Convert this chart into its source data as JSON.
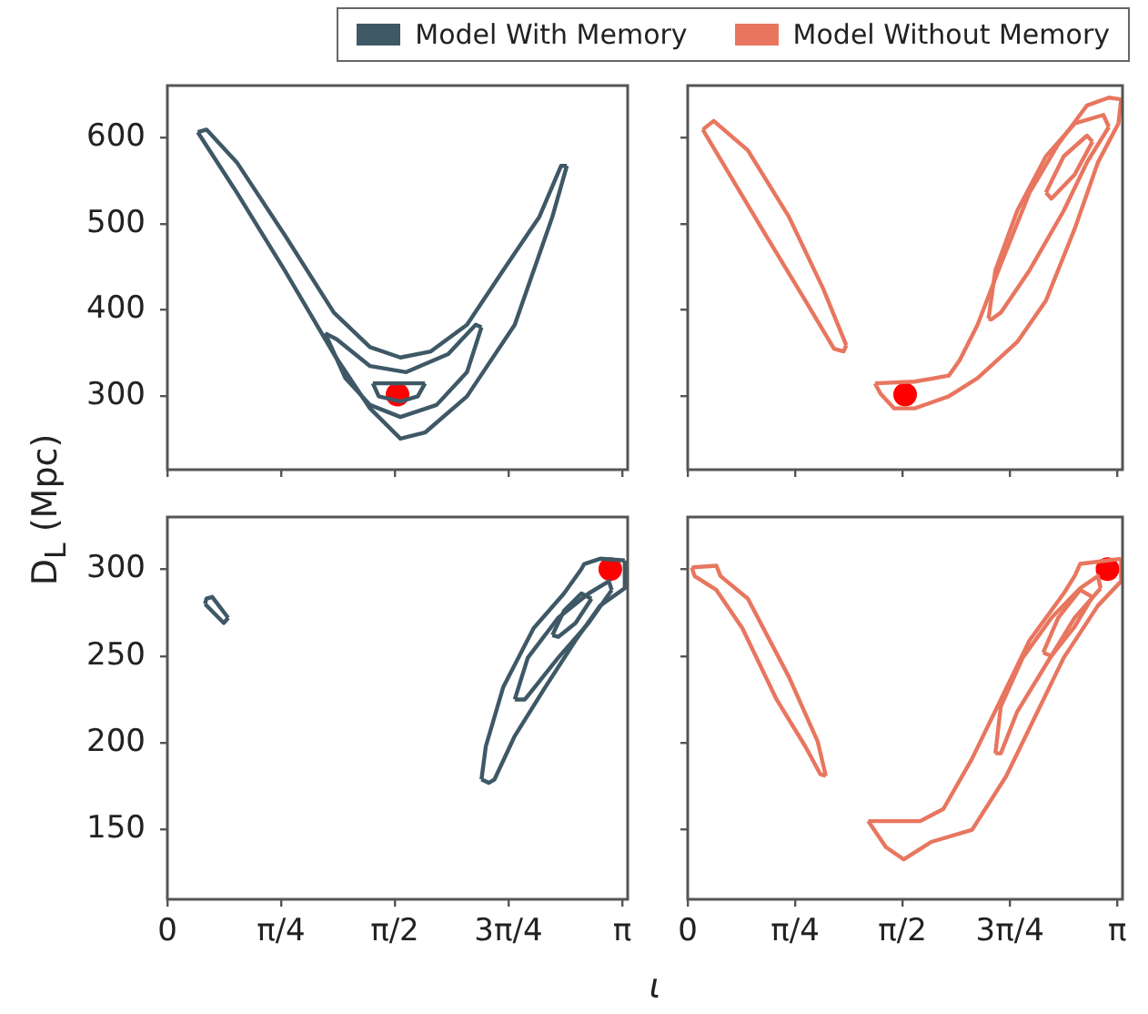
{
  "chart_data": [
    {
      "type": "line",
      "ylabel": "D$_{L}$ (Mpc)",
      "legend": "top",
      "tick_labels": "y",
      "grid": false,
      "marker": "none",
      "xlim": [
        0,
        3.18
      ],
      "ylim": [
        215,
        660
      ],
      "xticks": [
        {
          "value": 0,
          "label": null
        },
        {
          "value": 0.7854,
          "label": null
        },
        {
          "value": 1.5708,
          "label": null
        },
        {
          "value": 2.3562,
          "label": null
        },
        {
          "value": 3.1416,
          "label": null
        }
      ],
      "yticks": [
        300,
        400,
        500,
        600
      ],
      "series": [
        {
          "type": "line",
          "name": "Model With Memory",
          "color": "#3e5866",
          "x": [
            0.21,
            0.48,
            0.81,
            1.15,
            1.4,
            1.61,
            1.78,
            2.07,
            2.4,
            2.66,
            2.76
          ],
          "values": [
            606,
            536,
            446,
            349,
            286,
            251,
            258,
            300,
            383,
            508,
            567
          ]
        },
        {
          "type": "line",
          "color": "#3e5866",
          "x": [
            0.21,
            0.27,
            0.48,
            0.81,
            1.15,
            1.4,
            1.61,
            1.82,
            2.07,
            2.32,
            2.57,
            2.72,
            2.76
          ],
          "values": [
            606,
            609,
            571,
            487,
            397,
            357,
            345,
            352,
            383,
            446,
            508,
            567,
            567
          ]
        },
        {
          "type": "line",
          "color": "#3e5866",
          "x": [
            1.09,
            1.23,
            1.4,
            1.61,
            1.86,
            2.07,
            2.17
          ],
          "values": [
            373,
            321,
            290,
            276,
            290,
            328,
            380
          ]
        },
        {
          "type": "line",
          "color": "#3e5866",
          "x": [
            1.09,
            1.17,
            1.4,
            1.65,
            1.94,
            2.13,
            2.17
          ],
          "values": [
            373,
            366,
            335,
            328,
            349,
            383,
            380
          ]
        },
        {
          "type": "line",
          "color": "#3e5866",
          "x": [
            1.42,
            1.78
          ],
          "values": [
            315,
            315
          ]
        },
        {
          "type": "line",
          "color": "#3e5866",
          "x": [
            1.42,
            1.46,
            1.61,
            1.73,
            1.78
          ],
          "values": [
            315,
            300,
            294,
            300,
            315
          ]
        },
        {
          "type": "scatter",
          "marker": "circle",
          "color": "#ff0000",
          "x": [
            1.59
          ],
          "values": [
            302
          ]
        }
      ]
    },
    {
      "type": "line",
      "legend": "top",
      "tick_labels": false,
      "grid": false,
      "marker": "none",
      "xlim": [
        0,
        3.18
      ],
      "ylim": [
        215,
        660
      ],
      "xticks": [
        {
          "value": 0,
          "label": null
        },
        {
          "value": 0.7854,
          "label": null
        },
        {
          "value": 1.5708,
          "label": null
        },
        {
          "value": 2.3562,
          "label": null
        },
        {
          "value": 3.1416,
          "label": null
        }
      ],
      "yticks": [
        {
          "value": 300,
          "label": null
        },
        {
          "value": 400,
          "label": null
        },
        {
          "value": 500,
          "label": null
        },
        {
          "value": 600,
          "label": null
        }
      ],
      "series": [
        {
          "type": "line",
          "name": "Model Without Memory",
          "color": "#e8765f",
          "x": [
            0.11,
            0.19,
            0.44,
            0.74,
            0.99,
            1.16
          ],
          "values": [
            609,
            619,
            585,
            508,
            425,
            359
          ]
        },
        {
          "type": "line",
          "color": "#e8765f",
          "x": [
            0.11,
            0.28,
            0.57,
            0.86,
            1.07,
            1.14,
            1.16
          ],
          "values": [
            609,
            564,
            487,
            411,
            355,
            352,
            359
          ]
        },
        {
          "type": "line",
          "color": "#e8765f",
          "x": [
            1.37,
            1.66,
            1.91,
            1.99,
            2.12,
            2.29,
            2.5,
            2.71,
            2.92,
            3.08,
            3.17
          ],
          "values": [
            315,
            317,
            324,
            342,
            383,
            453,
            536,
            592,
            637,
            646,
            644
          ]
        },
        {
          "type": "line",
          "color": "#e8765f",
          "x": [
            1.37,
            1.41,
            1.51,
            1.66,
            1.91,
            2.12,
            2.41,
            2.62,
            2.83,
            3.0,
            3.15,
            3.17
          ],
          "values": [
            315,
            303,
            286,
            286,
            300,
            321,
            363,
            411,
            494,
            571,
            616,
            644
          ]
        },
        {
          "type": "line",
          "color": "#e8765f",
          "x": [
            2.2,
            2.25,
            2.41,
            2.62,
            2.83,
            3.04,
            3.08
          ],
          "values": [
            390,
            446,
            515,
            578,
            616,
            626,
            612
          ]
        },
        {
          "type": "line",
          "color": "#e8765f",
          "x": [
            2.2,
            2.22,
            2.29,
            2.5,
            2.75,
            2.92,
            3.08
          ],
          "values": [
            390,
            389,
            397,
            446,
            515,
            571,
            612
          ]
        },
        {
          "type": "line",
          "color": "#e8765f",
          "x": [
            2.62,
            2.75,
            2.92,
            2.96
          ],
          "values": [
            536,
            578,
            602,
            595
          ]
        },
        {
          "type": "line",
          "color": "#e8765f",
          "x": [
            2.62,
            2.66,
            2.83,
            2.96
          ],
          "values": [
            536,
            529,
            557,
            595
          ]
        },
        {
          "type": "scatter",
          "marker": "circle",
          "color": "#ff0000",
          "x": [
            1.59
          ],
          "values": [
            302
          ]
        }
      ]
    },
    {
      "type": "line",
      "xlabel": "ι",
      "grid": false,
      "marker": "none",
      "xlim": [
        0,
        3.18
      ],
      "ylim": [
        110,
        330
      ],
      "xticks": [
        {
          "value": 0,
          "label": "0"
        },
        {
          "value": 0.7854,
          "label": "π/4"
        },
        {
          "value": 1.5708,
          "label": "π/2"
        },
        {
          "value": 2.3562,
          "label": "3π/4"
        },
        {
          "value": 3.1416,
          "label": "π"
        }
      ],
      "yticks": [
        150,
        200,
        250,
        300
      ],
      "series": [
        {
          "type": "line",
          "color": "#3e5866",
          "x": [
            0.26,
            0.27,
            0.31,
            0.42
          ],
          "values": [
            280,
            283,
            284,
            272
          ]
        },
        {
          "type": "line",
          "color": "#3e5866",
          "x": [
            0.26,
            0.39,
            0.42
          ],
          "values": [
            280,
            269,
            272
          ]
        },
        {
          "type": "line",
          "color": "#3e5866",
          "x": [
            2.17,
            2.2,
            2.32,
            2.53,
            2.74,
            2.86,
            2.88,
            2.99,
            3.16
          ],
          "values": [
            179,
            198,
            232,
            266,
            286,
            300,
            303,
            306,
            305
          ]
        },
        {
          "type": "line",
          "color": "#3e5866",
          "x": [
            2.17,
            2.22,
            2.26,
            2.4,
            2.61,
            2.82,
            2.99,
            3.16,
            3.16
          ],
          "values": [
            179,
            177,
            179,
            204,
            232,
            259,
            279,
            289,
            305
          ]
        },
        {
          "type": "line",
          "color": "#3e5866",
          "x": [
            2.4,
            2.49,
            2.7,
            2.91,
            3.05,
            3.07
          ],
          "values": [
            225,
            249,
            272,
            286,
            293,
            288
          ]
        },
        {
          "type": "line",
          "color": "#3e5866",
          "x": [
            2.4,
            2.47,
            2.7,
            2.91,
            3.07
          ],
          "values": [
            225,
            225,
            249,
            269,
            288
          ]
        },
        {
          "type": "line",
          "color": "#3e5866",
          "x": [
            2.66,
            2.74,
            2.86,
            2.93
          ],
          "values": [
            262,
            276,
            286,
            283
          ]
        },
        {
          "type": "line",
          "color": "#3e5866",
          "x": [
            2.66,
            2.7,
            2.82,
            2.93
          ],
          "values": [
            262,
            261,
            269,
            283
          ]
        },
        {
          "type": "scatter",
          "marker": "circle",
          "color": "#ff0000",
          "x": [
            3.06
          ],
          "values": [
            300
          ]
        }
      ]
    },
    {
      "type": "line",
      "tick_labels": "x",
      "grid": false,
      "marker": "none",
      "xlim": [
        0,
        3.18
      ],
      "ylim": [
        110,
        330
      ],
      "xticks": [
        {
          "value": 0,
          "label": "0"
        },
        {
          "value": 0.7854,
          "label": "π/4"
        },
        {
          "value": 1.5708,
          "label": "π/2"
        },
        {
          "value": 2.3562,
          "label": "3π/4"
        },
        {
          "value": 3.1416,
          "label": "π"
        }
      ],
      "yticks": [
        {
          "value": 150,
          "label": null
        },
        {
          "value": 200,
          "label": null
        },
        {
          "value": 250,
          "label": null
        },
        {
          "value": 300,
          "label": null
        }
      ],
      "series": [
        {
          "type": "line",
          "color": "#e8765f",
          "x": [
            0.03,
            0.21,
            0.24,
            0.44,
            0.74,
            0.95,
            1.01
          ],
          "values": [
            301,
            302,
            296,
            283,
            238,
            201,
            181
          ]
        },
        {
          "type": "line",
          "color": "#e8765f",
          "x": [
            0.03,
            0.05,
            0.21,
            0.4,
            0.65,
            0.86,
            0.97,
            1.01
          ],
          "values": [
            301,
            296,
            288,
            266,
            225,
            198,
            182,
            181
          ]
        },
        {
          "type": "line",
          "color": "#e8765f",
          "x": [
            1.32,
            1.7,
            1.87,
            2.08,
            2.29,
            2.5,
            2.75,
            2.83,
            2.87,
            3.17
          ],
          "values": [
            155,
            155,
            162,
            191,
            225,
            259,
            286,
            296,
            303,
            306
          ]
        },
        {
          "type": "line",
          "color": "#e8765f",
          "x": [
            1.32,
            1.45,
            1.58,
            1.78,
            2.08,
            2.33,
            2.54,
            2.75,
            3.0,
            3.17,
            3.17
          ],
          "values": [
            155,
            140,
            133,
            143,
            150,
            181,
            215,
            249,
            279,
            293,
            306
          ]
        },
        {
          "type": "line",
          "color": "#e8765f",
          "x": [
            2.25,
            2.29,
            2.45,
            2.66,
            2.87,
            3.0,
            3.02
          ],
          "values": [
            194,
            221,
            249,
            272,
            289,
            296,
            289
          ]
        },
        {
          "type": "line",
          "color": "#e8765f",
          "x": [
            2.25,
            2.29,
            2.41,
            2.62,
            2.83,
            3.02
          ],
          "values": [
            194,
            194,
            218,
            245,
            272,
            289
          ]
        },
        {
          "type": "line",
          "color": "#e8765f",
          "x": [
            2.6,
            2.71,
            2.87,
            2.96
          ],
          "values": [
            252,
            272,
            288,
            284
          ]
        },
        {
          "type": "line",
          "color": "#e8765f",
          "x": [
            2.6,
            2.66,
            2.83,
            2.96
          ],
          "values": [
            252,
            250,
            267,
            284
          ]
        },
        {
          "type": "scatter",
          "marker": "circle",
          "color": "#ff0000",
          "x": [
            3.07
          ],
          "values": [
            300
          ]
        }
      ]
    }
  ]
}
